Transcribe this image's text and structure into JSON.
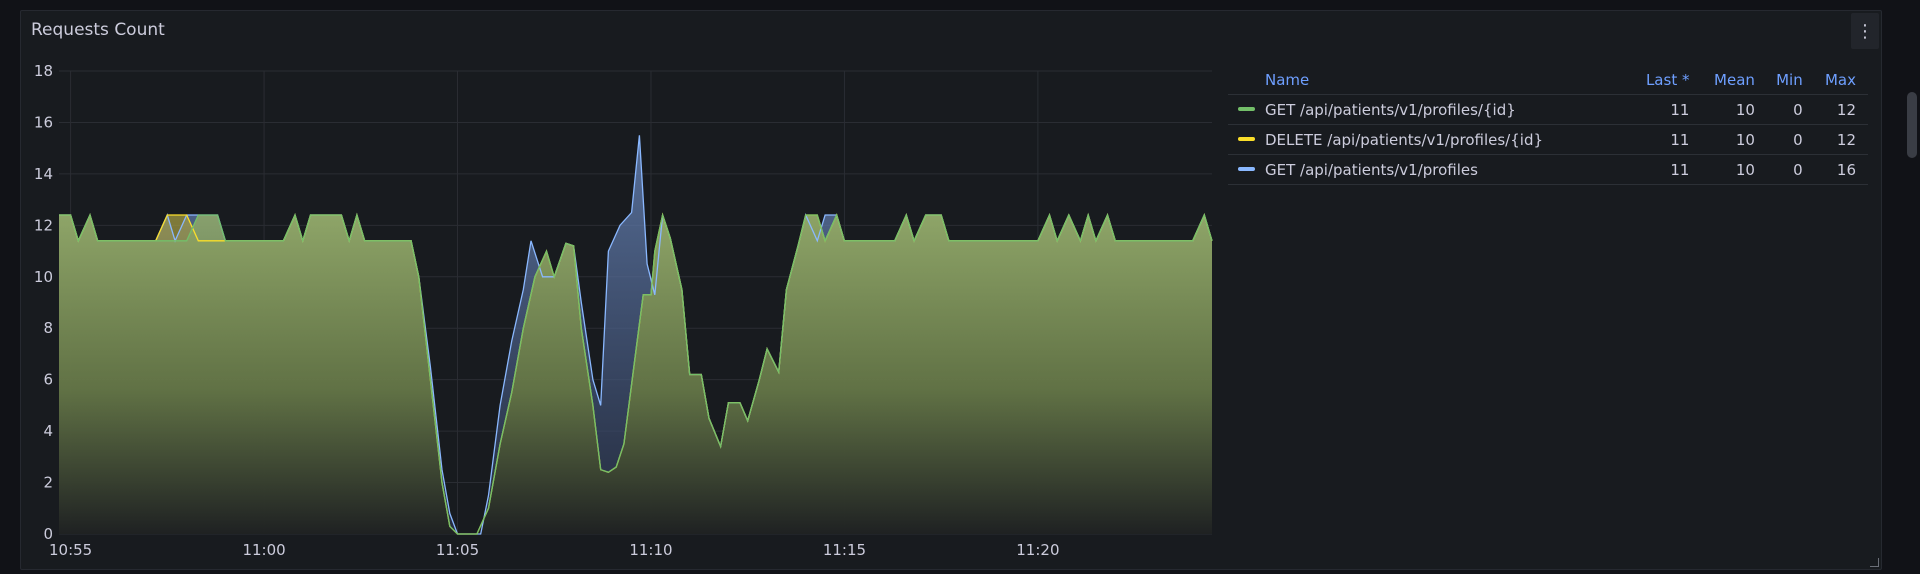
{
  "panel": {
    "title": "Requests Count",
    "menu_icon": "kebab-menu-icon"
  },
  "legend": {
    "columns": [
      "Name",
      "Last *",
      "Mean",
      "Min",
      "Max"
    ],
    "rows": [
      {
        "name": "GET /api/patients/v1/profiles/{id}",
        "color": "#73bf69",
        "last": "11",
        "mean": "10",
        "min": "0",
        "max": "12"
      },
      {
        "name": "DELETE /api/patients/v1/profiles/{id}",
        "color": "#fade2a",
        "last": "11",
        "mean": "10",
        "min": "0",
        "max": "12"
      },
      {
        "name": "GET /api/patients/v1/profiles",
        "color": "#8ab8ff",
        "last": "11",
        "mean": "10",
        "min": "0",
        "max": "16"
      }
    ]
  },
  "chart_data": {
    "type": "area",
    "title": "Requests Count",
    "ylim": [
      0,
      18
    ],
    "y_ticks": [
      "0",
      "2",
      "4",
      "6",
      "8",
      "10",
      "12",
      "14",
      "16",
      "18"
    ],
    "x_range": [
      -0.3,
      29.5
    ],
    "x_ticks": [
      {
        "label": "10:55",
        "value": 0
      },
      {
        "label": "11:00",
        "value": 5
      },
      {
        "label": "11:05",
        "value": 10
      },
      {
        "label": "11:10",
        "value": 15
      },
      {
        "label": "11:15",
        "value": 20
      },
      {
        "label": "11:20",
        "value": 25
      }
    ],
    "grid": true,
    "legend_position": "right",
    "series": [
      {
        "name": "GET /api/patients/v1/profiles/{id}",
        "color": "#73bf69",
        "points": [
          [
            -0.3,
            12.4
          ],
          [
            0.0,
            12.4
          ],
          [
            0.2,
            11.4
          ],
          [
            0.5,
            12.4
          ],
          [
            0.7,
            11.4
          ],
          [
            2.2,
            11.4
          ],
          [
            2.5,
            11.4
          ],
          [
            3.0,
            11.4
          ],
          [
            3.3,
            12.4
          ],
          [
            3.8,
            12.4
          ],
          [
            4.0,
            11.4
          ],
          [
            5.5,
            11.4
          ],
          [
            5.8,
            12.4
          ],
          [
            6.0,
            11.4
          ],
          [
            6.2,
            12.4
          ],
          [
            7.0,
            12.4
          ],
          [
            7.2,
            11.4
          ],
          [
            7.4,
            12.4
          ],
          [
            7.6,
            11.4
          ],
          [
            8.8,
            11.4
          ],
          [
            9.0,
            10.0
          ],
          [
            9.3,
            6.0
          ],
          [
            9.6,
            2.0
          ],
          [
            9.8,
            0.3
          ],
          [
            10.0,
            0
          ],
          [
            10.5,
            0
          ],
          [
            10.8,
            1.0
          ],
          [
            11.1,
            3.5
          ],
          [
            11.4,
            5.5
          ],
          [
            11.7,
            8.0
          ],
          [
            12.0,
            10.0
          ],
          [
            12.3,
            11.0
          ],
          [
            12.5,
            10.0
          ],
          [
            12.8,
            11.3
          ],
          [
            13.0,
            11.2
          ],
          [
            13.2,
            8.0
          ],
          [
            13.5,
            5.0
          ],
          [
            13.7,
            2.5
          ],
          [
            13.9,
            2.4
          ],
          [
            14.1,
            2.6
          ],
          [
            14.3,
            3.5
          ],
          [
            14.6,
            7.0
          ],
          [
            14.8,
            9.3
          ],
          [
            15.0,
            9.3
          ],
          [
            15.1,
            11.0
          ],
          [
            15.3,
            12.4
          ],
          [
            15.5,
            11.5
          ],
          [
            15.8,
            9.5
          ],
          [
            16.0,
            6.2
          ],
          [
            16.3,
            6.2
          ],
          [
            16.5,
            4.5
          ],
          [
            16.8,
            3.4
          ],
          [
            17.0,
            5.1
          ],
          [
            17.3,
            5.1
          ],
          [
            17.5,
            4.4
          ],
          [
            17.8,
            6.0
          ],
          [
            18.0,
            7.2
          ],
          [
            18.3,
            6.3
          ],
          [
            18.5,
            9.5
          ],
          [
            18.8,
            11.2
          ],
          [
            19.0,
            12.4
          ],
          [
            19.3,
            12.4
          ],
          [
            19.5,
            11.4
          ],
          [
            19.8,
            12.4
          ],
          [
            20.0,
            11.4
          ],
          [
            21.3,
            11.4
          ],
          [
            21.6,
            12.4
          ],
          [
            21.8,
            11.4
          ],
          [
            22.1,
            12.4
          ],
          [
            22.5,
            12.4
          ],
          [
            22.7,
            11.4
          ],
          [
            23.0,
            11.4
          ],
          [
            25.0,
            11.4
          ],
          [
            25.3,
            12.4
          ],
          [
            25.5,
            11.4
          ],
          [
            25.8,
            12.4
          ],
          [
            26.1,
            11.4
          ],
          [
            26.3,
            12.4
          ],
          [
            26.5,
            11.4
          ],
          [
            26.8,
            12.4
          ],
          [
            27.0,
            11.4
          ],
          [
            29.0,
            11.4
          ],
          [
            29.3,
            12.4
          ],
          [
            29.5,
            11.4
          ]
        ]
      },
      {
        "name": "DELETE /api/patients/v1/profiles/{id}",
        "color": "#fade2a",
        "points": [
          [
            -0.3,
            12.4
          ],
          [
            0.0,
            12.4
          ],
          [
            0.2,
            11.4
          ],
          [
            0.5,
            12.4
          ],
          [
            0.7,
            11.4
          ],
          [
            2.2,
            11.4
          ],
          [
            2.5,
            12.4
          ],
          [
            3.0,
            12.4
          ],
          [
            3.3,
            11.4
          ],
          [
            5.5,
            11.4
          ],
          [
            5.8,
            12.4
          ],
          [
            6.0,
            11.4
          ],
          [
            6.2,
            12.4
          ],
          [
            7.0,
            12.4
          ],
          [
            7.2,
            11.4
          ],
          [
            7.4,
            12.4
          ],
          [
            7.6,
            11.4
          ],
          [
            8.8,
            11.4
          ],
          [
            9.0,
            10.0
          ],
          [
            9.3,
            6.0
          ],
          [
            9.6,
            2.0
          ],
          [
            9.8,
            0.3
          ],
          [
            10.0,
            0
          ],
          [
            10.5,
            0
          ],
          [
            10.8,
            1.0
          ],
          [
            11.1,
            3.5
          ],
          [
            11.4,
            5.5
          ],
          [
            11.7,
            8.0
          ],
          [
            12.0,
            10.0
          ],
          [
            12.3,
            11.0
          ],
          [
            12.5,
            10.0
          ],
          [
            12.8,
            11.3
          ],
          [
            13.0,
            11.2
          ],
          [
            13.2,
            8.0
          ],
          [
            13.5,
            5.0
          ],
          [
            13.7,
            2.5
          ],
          [
            13.9,
            2.4
          ],
          [
            14.1,
            2.6
          ],
          [
            14.3,
            3.5
          ],
          [
            14.6,
            7.0
          ],
          [
            14.8,
            9.3
          ],
          [
            15.0,
            9.3
          ],
          [
            15.1,
            11.0
          ],
          [
            15.3,
            12.4
          ],
          [
            15.5,
            11.5
          ],
          [
            15.8,
            9.5
          ],
          [
            16.0,
            6.2
          ],
          [
            16.3,
            6.2
          ],
          [
            16.5,
            4.5
          ],
          [
            16.8,
            3.4
          ],
          [
            17.0,
            5.1
          ],
          [
            17.3,
            5.1
          ],
          [
            17.5,
            4.4
          ],
          [
            17.8,
            6.0
          ],
          [
            18.0,
            7.2
          ],
          [
            18.3,
            6.3
          ],
          [
            18.5,
            9.5
          ],
          [
            18.8,
            11.2
          ],
          [
            19.0,
            12.4
          ],
          [
            19.3,
            12.4
          ],
          [
            19.5,
            11.4
          ],
          [
            19.8,
            12.4
          ],
          [
            20.0,
            11.4
          ],
          [
            21.3,
            11.4
          ],
          [
            21.6,
            12.4
          ],
          [
            21.8,
            11.4
          ],
          [
            22.1,
            12.4
          ],
          [
            22.5,
            12.4
          ],
          [
            22.7,
            11.4
          ],
          [
            25.0,
            11.4
          ],
          [
            25.3,
            12.4
          ],
          [
            25.5,
            11.4
          ],
          [
            25.8,
            12.4
          ],
          [
            26.1,
            11.4
          ],
          [
            26.3,
            12.4
          ],
          [
            26.5,
            11.4
          ],
          [
            26.8,
            12.4
          ],
          [
            27.0,
            11.4
          ],
          [
            29.0,
            11.4
          ],
          [
            29.3,
            12.4
          ],
          [
            29.5,
            11.4
          ]
        ]
      },
      {
        "name": "GET /api/patients/v1/profiles",
        "color": "#8ab8ff",
        "points": [
          [
            -0.3,
            12.4
          ],
          [
            0.0,
            12.4
          ],
          [
            0.2,
            11.4
          ],
          [
            0.5,
            12.4
          ],
          [
            0.7,
            11.4
          ],
          [
            2.2,
            11.4
          ],
          [
            2.5,
            12.4
          ],
          [
            2.7,
            11.4
          ],
          [
            3.0,
            12.4
          ],
          [
            3.8,
            12.4
          ],
          [
            4.0,
            11.4
          ],
          [
            5.5,
            11.4
          ],
          [
            5.8,
            12.4
          ],
          [
            6.0,
            11.4
          ],
          [
            6.2,
            12.4
          ],
          [
            7.0,
            12.4
          ],
          [
            7.2,
            11.4
          ],
          [
            7.4,
            12.4
          ],
          [
            7.6,
            11.4
          ],
          [
            8.8,
            11.4
          ],
          [
            9.0,
            10.0
          ],
          [
            9.3,
            6.5
          ],
          [
            9.6,
            2.5
          ],
          [
            9.8,
            0.8
          ],
          [
            10.0,
            0
          ],
          [
            10.6,
            0
          ],
          [
            10.8,
            1.5
          ],
          [
            11.1,
            5.0
          ],
          [
            11.4,
            7.5
          ],
          [
            11.7,
            9.5
          ],
          [
            11.9,
            11.4
          ],
          [
            12.2,
            10.0
          ],
          [
            12.5,
            10.0
          ],
          [
            12.8,
            11.3
          ],
          [
            13.0,
            11.2
          ],
          [
            13.2,
            9.0
          ],
          [
            13.5,
            6.0
          ],
          [
            13.7,
            5.0
          ],
          [
            13.9,
            11.0
          ],
          [
            14.2,
            12.0
          ],
          [
            14.5,
            12.5
          ],
          [
            14.7,
            15.5
          ],
          [
            14.9,
            10.5
          ],
          [
            15.1,
            9.3
          ],
          [
            15.3,
            12.4
          ],
          [
            15.5,
            11.5
          ],
          [
            15.8,
            9.5
          ],
          [
            16.0,
            6.2
          ],
          [
            16.3,
            6.2
          ],
          [
            16.5,
            4.5
          ],
          [
            16.8,
            3.4
          ],
          [
            17.0,
            5.1
          ],
          [
            17.3,
            5.1
          ],
          [
            17.5,
            4.4
          ],
          [
            17.8,
            6.0
          ],
          [
            18.0,
            7.2
          ],
          [
            18.3,
            6.3
          ],
          [
            18.5,
            9.5
          ],
          [
            18.8,
            11.2
          ],
          [
            19.0,
            12.4
          ],
          [
            19.3,
            11.4
          ],
          [
            19.5,
            12.4
          ],
          [
            19.8,
            12.4
          ],
          [
            20.0,
            11.4
          ],
          [
            21.3,
            11.4
          ],
          [
            21.6,
            12.4
          ],
          [
            21.8,
            11.4
          ],
          [
            22.1,
            12.4
          ],
          [
            22.5,
            12.4
          ],
          [
            22.7,
            11.4
          ],
          [
            25.0,
            11.4
          ],
          [
            25.3,
            12.4
          ],
          [
            25.5,
            11.4
          ],
          [
            25.8,
            12.4
          ],
          [
            26.1,
            11.4
          ],
          [
            26.3,
            12.4
          ],
          [
            26.5,
            11.4
          ],
          [
            26.8,
            12.4
          ],
          [
            27.0,
            11.4
          ],
          [
            29.0,
            11.4
          ],
          [
            29.3,
            12.4
          ],
          [
            29.5,
            11.4
          ]
        ]
      }
    ]
  }
}
